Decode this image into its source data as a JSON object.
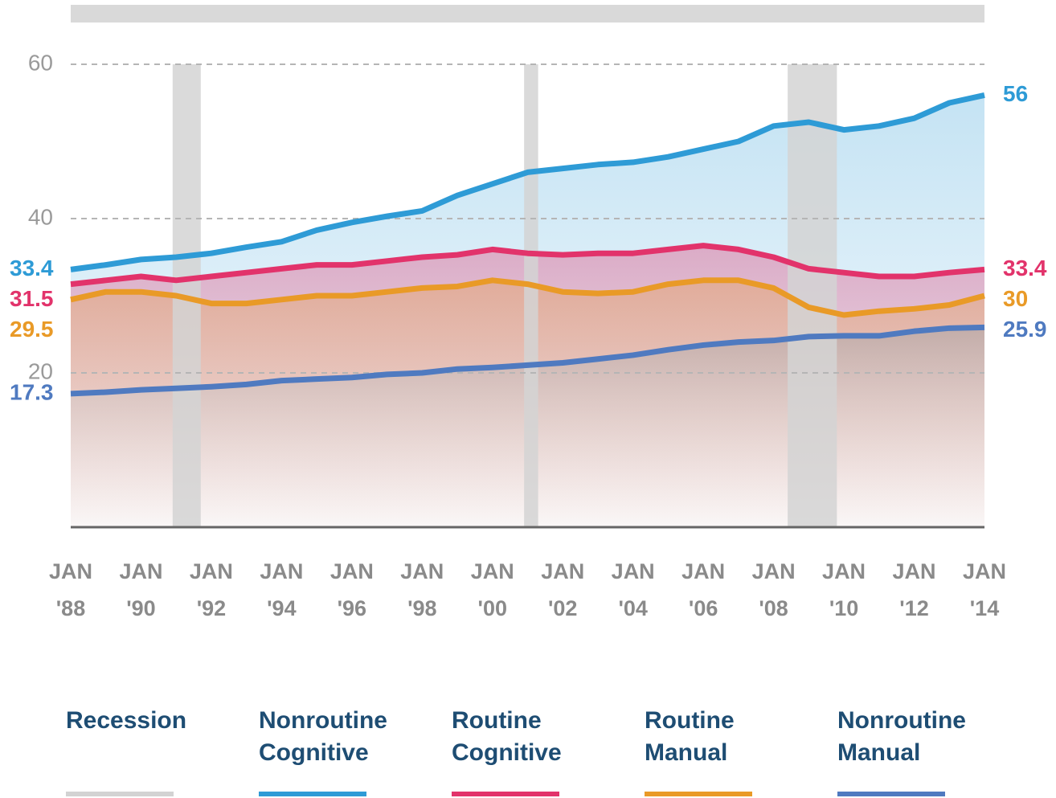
{
  "chart_data": {
    "type": "line",
    "x": [
      1988,
      1989,
      1990,
      1991,
      1992,
      1993,
      1994,
      1995,
      1996,
      1997,
      1998,
      1999,
      2000,
      2001,
      2002,
      2003,
      2004,
      2005,
      2006,
      2007,
      2008,
      2009,
      2010,
      2011,
      2012,
      2013,
      2014
    ],
    "series": [
      {
        "name": "Nonroutine Cognitive",
        "color": "#2e9bd6",
        "values": [
          33.4,
          34,
          34.7,
          35,
          35.5,
          36.3,
          37,
          38.5,
          39.5,
          40.3,
          41,
          43,
          44.5,
          46,
          46.5,
          47,
          47.3,
          48,
          49,
          50,
          52,
          52.5,
          51.5,
          52,
          53,
          55,
          56
        ]
      },
      {
        "name": "Routine Cognitive",
        "color": "#e2336b",
        "values": [
          31.5,
          32,
          32.5,
          32,
          32.5,
          33,
          33.5,
          34,
          34,
          34.5,
          35,
          35.3,
          36,
          35.5,
          35.3,
          35.5,
          35.5,
          36,
          36.5,
          36,
          35,
          33.5,
          33,
          32.5,
          32.5,
          33,
          33.4
        ]
      },
      {
        "name": "Routine Manual",
        "color": "#e99a27",
        "values": [
          29.5,
          30.5,
          30.5,
          30,
          29,
          29,
          29.5,
          30,
          30,
          30.5,
          31,
          31.2,
          32,
          31.5,
          30.5,
          30.3,
          30.5,
          31.5,
          32,
          32,
          31,
          28.5,
          27.5,
          28,
          28.3,
          28.8,
          30
        ]
      },
      {
        "name": "Nonroutine Manual",
        "color": "#4f7ac0",
        "values": [
          17.3,
          17.5,
          17.8,
          18,
          18.2,
          18.5,
          19,
          19.2,
          19.4,
          19.8,
          20,
          20.5,
          20.7,
          21,
          21.3,
          21.8,
          22.3,
          23,
          23.6,
          24,
          24.2,
          24.7,
          24.8,
          24.8,
          25.4,
          25.8,
          25.9
        ]
      }
    ],
    "recession": {
      "name": "Recession",
      "color": "#d3d3d3",
      "periods": [
        [
          1990.9,
          1991.7
        ],
        [
          2000.9,
          2001.3
        ],
        [
          2008.4,
          2009.8
        ]
      ]
    },
    "xlim": [
      1988,
      2014
    ],
    "xticks": [
      {
        "value": 1988,
        "label": "JAN '88"
      },
      {
        "value": 1990,
        "label": "JAN '90"
      },
      {
        "value": 1992,
        "label": "JAN '92"
      },
      {
        "value": 1994,
        "label": "JAN '94"
      },
      {
        "value": 1996,
        "label": "JAN '96"
      },
      {
        "value": 1998,
        "label": "JAN '98"
      },
      {
        "value": 2000,
        "label": "JAN '00"
      },
      {
        "value": 2002,
        "label": "JAN '02"
      },
      {
        "value": 2004,
        "label": "JAN '04"
      },
      {
        "value": 2006,
        "label": "JAN '06"
      },
      {
        "value": 2008,
        "label": "JAN '08"
      },
      {
        "value": 2010,
        "label": "JAN '10"
      },
      {
        "value": 2012,
        "label": "JAN '12"
      },
      {
        "value": 2014,
        "label": "JAN '14"
      }
    ],
    "ylim": [
      0,
      60
    ],
    "yticks": [
      20,
      40,
      60
    ],
    "grid": true
  }
}
